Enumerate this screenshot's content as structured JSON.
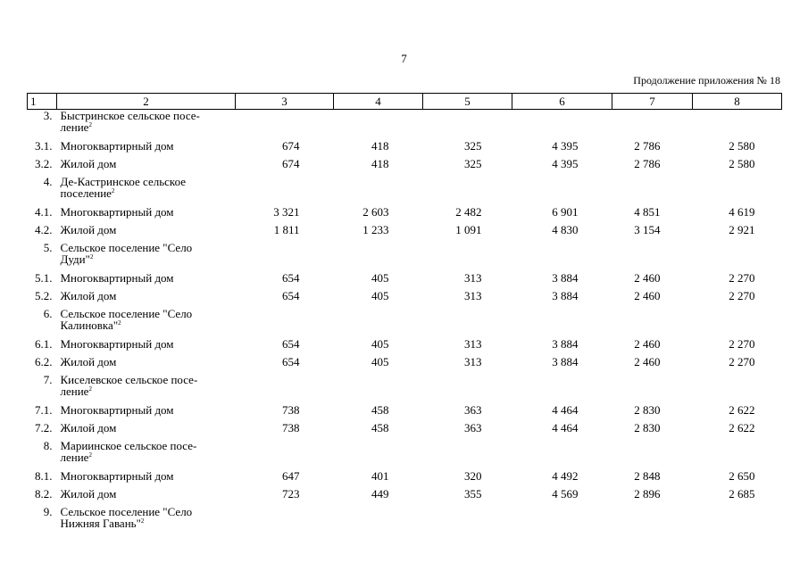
{
  "page_number": "7",
  "continuation_label": "Продолжение приложения № 18",
  "header": [
    "1",
    "2",
    "3",
    "4",
    "5",
    "6",
    "7",
    "8"
  ],
  "rows": [
    {
      "kind": "section",
      "num": "3.",
      "name_line1": "Быстринское сельское посе-",
      "name_line2": "ление",
      "footnote": "2"
    },
    {
      "kind": "data",
      "num": "3.1.",
      "name": "Многоквартирный дом",
      "values": [
        "674",
        "418",
        "325",
        "4 395",
        "2 786",
        "2 580"
      ]
    },
    {
      "kind": "data",
      "num": "3.2.",
      "name": "Жилой дом",
      "values": [
        "674",
        "418",
        "325",
        "4 395",
        "2 786",
        "2 580"
      ]
    },
    {
      "kind": "section",
      "num": "4.",
      "name_line1": "Де-Кастринское сельское",
      "name_line2": "поселение",
      "footnote": "2"
    },
    {
      "kind": "data",
      "num": "4.1.",
      "name": "Многоквартирный дом",
      "values": [
        "3 321",
        "2 603",
        "2 482",
        "6 901",
        "4 851",
        "4 619"
      ]
    },
    {
      "kind": "data",
      "num": "4.2.",
      "name": "Жилой дом",
      "values": [
        "1 811",
        "1 233",
        "1 091",
        "4 830",
        "3 154",
        "2 921"
      ]
    },
    {
      "kind": "section",
      "num": "5.",
      "name_line1": "Сельское поселение \"Село",
      "name_line2": "Дуди\"",
      "footnote": "2"
    },
    {
      "kind": "data",
      "num": "5.1.",
      "name": "Многоквартирный дом",
      "values": [
        "654",
        "405",
        "313",
        "3 884",
        "2 460",
        "2 270"
      ]
    },
    {
      "kind": "data",
      "num": "5.2.",
      "name": "Жилой дом",
      "values": [
        "654",
        "405",
        "313",
        "3 884",
        "2 460",
        "2 270"
      ]
    },
    {
      "kind": "section",
      "num": "6.",
      "name_line1": "Сельское поселение \"Село",
      "name_line2": "Калиновка\"",
      "footnote": "2"
    },
    {
      "kind": "data",
      "num": "6.1.",
      "name": "Многоквартирный дом",
      "values": [
        "654",
        "405",
        "313",
        "3 884",
        "2 460",
        "2 270"
      ]
    },
    {
      "kind": "data",
      "num": "6.2.",
      "name": "Жилой дом",
      "values": [
        "654",
        "405",
        "313",
        "3 884",
        "2 460",
        "2 270"
      ]
    },
    {
      "kind": "section",
      "num": "7.",
      "name_line1": "Киселевское сельское посе-",
      "name_line2": "ление",
      "footnote": "2"
    },
    {
      "kind": "data",
      "num": "7.1.",
      "name": "Многоквартирный дом",
      "values": [
        "738",
        "458",
        "363",
        "4 464",
        "2 830",
        "2 622"
      ]
    },
    {
      "kind": "data",
      "num": "7.2.",
      "name": "Жилой дом",
      "values": [
        "738",
        "458",
        "363",
        "4 464",
        "2 830",
        "2 622"
      ]
    },
    {
      "kind": "section",
      "num": "8.",
      "name_line1": "Мариинское сельское посе-",
      "name_line2": "ление",
      "footnote": "2"
    },
    {
      "kind": "data",
      "num": "8.1.",
      "name": "Многоквартирный дом",
      "values": [
        "647",
        "401",
        "320",
        "4 492",
        "2 848",
        "2 650"
      ]
    },
    {
      "kind": "data",
      "num": "8.2.",
      "name": "Жилой дом",
      "values": [
        "723",
        "449",
        "355",
        "4 569",
        "2 896",
        "2 685"
      ]
    },
    {
      "kind": "section",
      "num": "9.",
      "name_line1": "Сельское поселение \"Село",
      "name_line2": "Нижняя Гавань\"",
      "footnote": "2"
    }
  ]
}
